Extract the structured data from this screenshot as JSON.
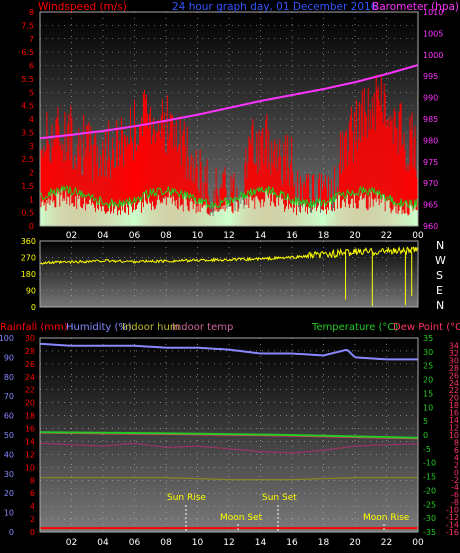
{
  "header": {
    "windspeed_label": "Windspeed (m/s)",
    "title": "24 hour graph day, 01 December 2016",
    "barometer_label": "Barometer (hpa)"
  },
  "compass": [
    "N",
    "W",
    "S",
    "E",
    "N"
  ],
  "legend_bottom": {
    "rainfall": "Rainfall (mm)",
    "humidity": "Humidity (%)",
    "indoor_hum": "Indoor hum",
    "indoor_temp": "Indoor temp",
    "temperature": "Temperature (°C)",
    "dew_point": "Dew Point (°C)"
  },
  "annotations": {
    "sun_rise": "Sun Rise",
    "sun_set": "Sun Set",
    "moon_set": "Moon Set",
    "moon_rise": "Moon Rise"
  },
  "colors": {
    "wind_gust": "#ff0000",
    "wind_avg": "#22cc22",
    "wind_fill": "#ccffcc",
    "barometer": "#ff33ff",
    "direction": "#ffff00",
    "humidity": "#8888ff",
    "temperature": "#22cc22",
    "dew_point": "#ff3366",
    "indoor_temp": "#993366",
    "indoor_hum": "#888822",
    "rainfall": "#ff0000"
  },
  "chart_data": [
    {
      "type": "line",
      "name": "wind-and-barometer",
      "x_ticks": [
        "02",
        "04",
        "06",
        "08",
        "10",
        "12",
        "14",
        "16",
        "18",
        "20",
        "22",
        "00"
      ],
      "wind_ticks": [
        "8",
        "7.5",
        "7",
        "6.5",
        "6",
        "5.5",
        "5",
        "4.5",
        "4",
        "3.5",
        "3",
        "2.5",
        "2",
        "1.5",
        "1",
        "0.5",
        "0"
      ],
      "baro_ticks": [
        "1010",
        "1005",
        "1000",
        "995",
        "990",
        "985",
        "980",
        "975",
        "970",
        "965",
        "960"
      ],
      "wind_ylim": [
        0,
        8
      ],
      "baro_ylim": [
        960,
        1010
      ],
      "series": [
        {
          "name": "Barometer",
          "x": [
            0,
            2,
            4,
            6,
            8,
            10,
            12,
            14,
            16,
            18,
            20,
            22,
            24
          ],
          "values": [
            980.5,
            981.3,
            982.2,
            983.3,
            984.6,
            986.0,
            987.6,
            989.2,
            990.6,
            992.0,
            993.6,
            995.5,
            997.6
          ]
        }
      ]
    },
    {
      "type": "line",
      "name": "wind-direction",
      "y_ticks": [
        "360",
        "270",
        "180",
        "90",
        "0"
      ],
      "ylim": [
        0,
        360
      ],
      "x": [
        0,
        2,
        4,
        6,
        8,
        10,
        12,
        14,
        16,
        18,
        20,
        22,
        24
      ],
      "values": [
        240,
        245,
        252,
        248,
        250,
        255,
        258,
        262,
        270,
        285,
        300,
        305,
        310
      ]
    },
    {
      "type": "line",
      "name": "temperature-humidity-rain",
      "x_ticks": [
        "02",
        "04",
        "06",
        "08",
        "10",
        "12",
        "14",
        "16",
        "18",
        "20",
        "22",
        "00"
      ],
      "humidity_ticks": [
        "100",
        "90",
        "80",
        "70",
        "60",
        "50",
        "40",
        "30",
        "20",
        "10",
        "0"
      ],
      "rain_ticks": [
        "30",
        "28",
        "26",
        "24",
        "22",
        "20",
        "18",
        "16",
        "14",
        "12",
        "10",
        "8",
        "6",
        "4",
        "2",
        "0"
      ],
      "temp_ticks": [
        "35",
        "30",
        "25",
        "20",
        "15",
        "10",
        "5",
        "0",
        "-5",
        "-10",
        "-15",
        "-20",
        "-25",
        "-30",
        "-35"
      ],
      "dew_ticks": [
        "34",
        "32",
        "30",
        "28",
        "26",
        "24",
        "22",
        "20",
        "18",
        "16",
        "14",
        "12",
        "10",
        "8",
        "6",
        "4",
        "2",
        "0",
        "-2",
        "-4",
        "-6",
        "-8",
        "-10",
        "-12",
        "-14",
        "-16"
      ],
      "series": [
        {
          "name": "Humidity",
          "x": [
            0,
            2,
            4,
            6,
            8,
            10,
            12,
            14,
            16,
            18,
            19.5,
            20,
            22,
            24
          ],
          "values": [
            97,
            96,
            96,
            96,
            95,
            95,
            94,
            92,
            92,
            91,
            94,
            90,
            89,
            89
          ]
        },
        {
          "name": "Temperature",
          "x": [
            0,
            4,
            8,
            12,
            16,
            20,
            24
          ],
          "values": [
            1.0,
            0.8,
            0.6,
            0.3,
            0.0,
            -0.5,
            -1.0
          ]
        },
        {
          "name": "Dew Point",
          "x": [
            0,
            4,
            8,
            12,
            16,
            20,
            24
          ],
          "values": [
            0.8,
            0.5,
            0.3,
            0.0,
            -0.3,
            -0.8,
            -1.3
          ]
        },
        {
          "name": "Indoor temp",
          "x": [
            0,
            2,
            4,
            6,
            8,
            10,
            12,
            14,
            16,
            18,
            20,
            22,
            24
          ],
          "values": [
            -3.0,
            -3.5,
            -4.0,
            -3.0,
            -4.5,
            -4.0,
            -5.0,
            -6.0,
            -6.5,
            -5.5,
            -4.0,
            -3.5,
            -3.2
          ]
        },
        {
          "name": "Indoor hum",
          "x": [
            0,
            4,
            8,
            12,
            16,
            20,
            24
          ],
          "values": [
            28,
            28,
            28,
            27,
            27,
            28,
            28
          ]
        },
        {
          "name": "Rainfall",
          "x": [
            0,
            24
          ],
          "values": [
            0.6,
            0.6
          ]
        }
      ]
    }
  ]
}
